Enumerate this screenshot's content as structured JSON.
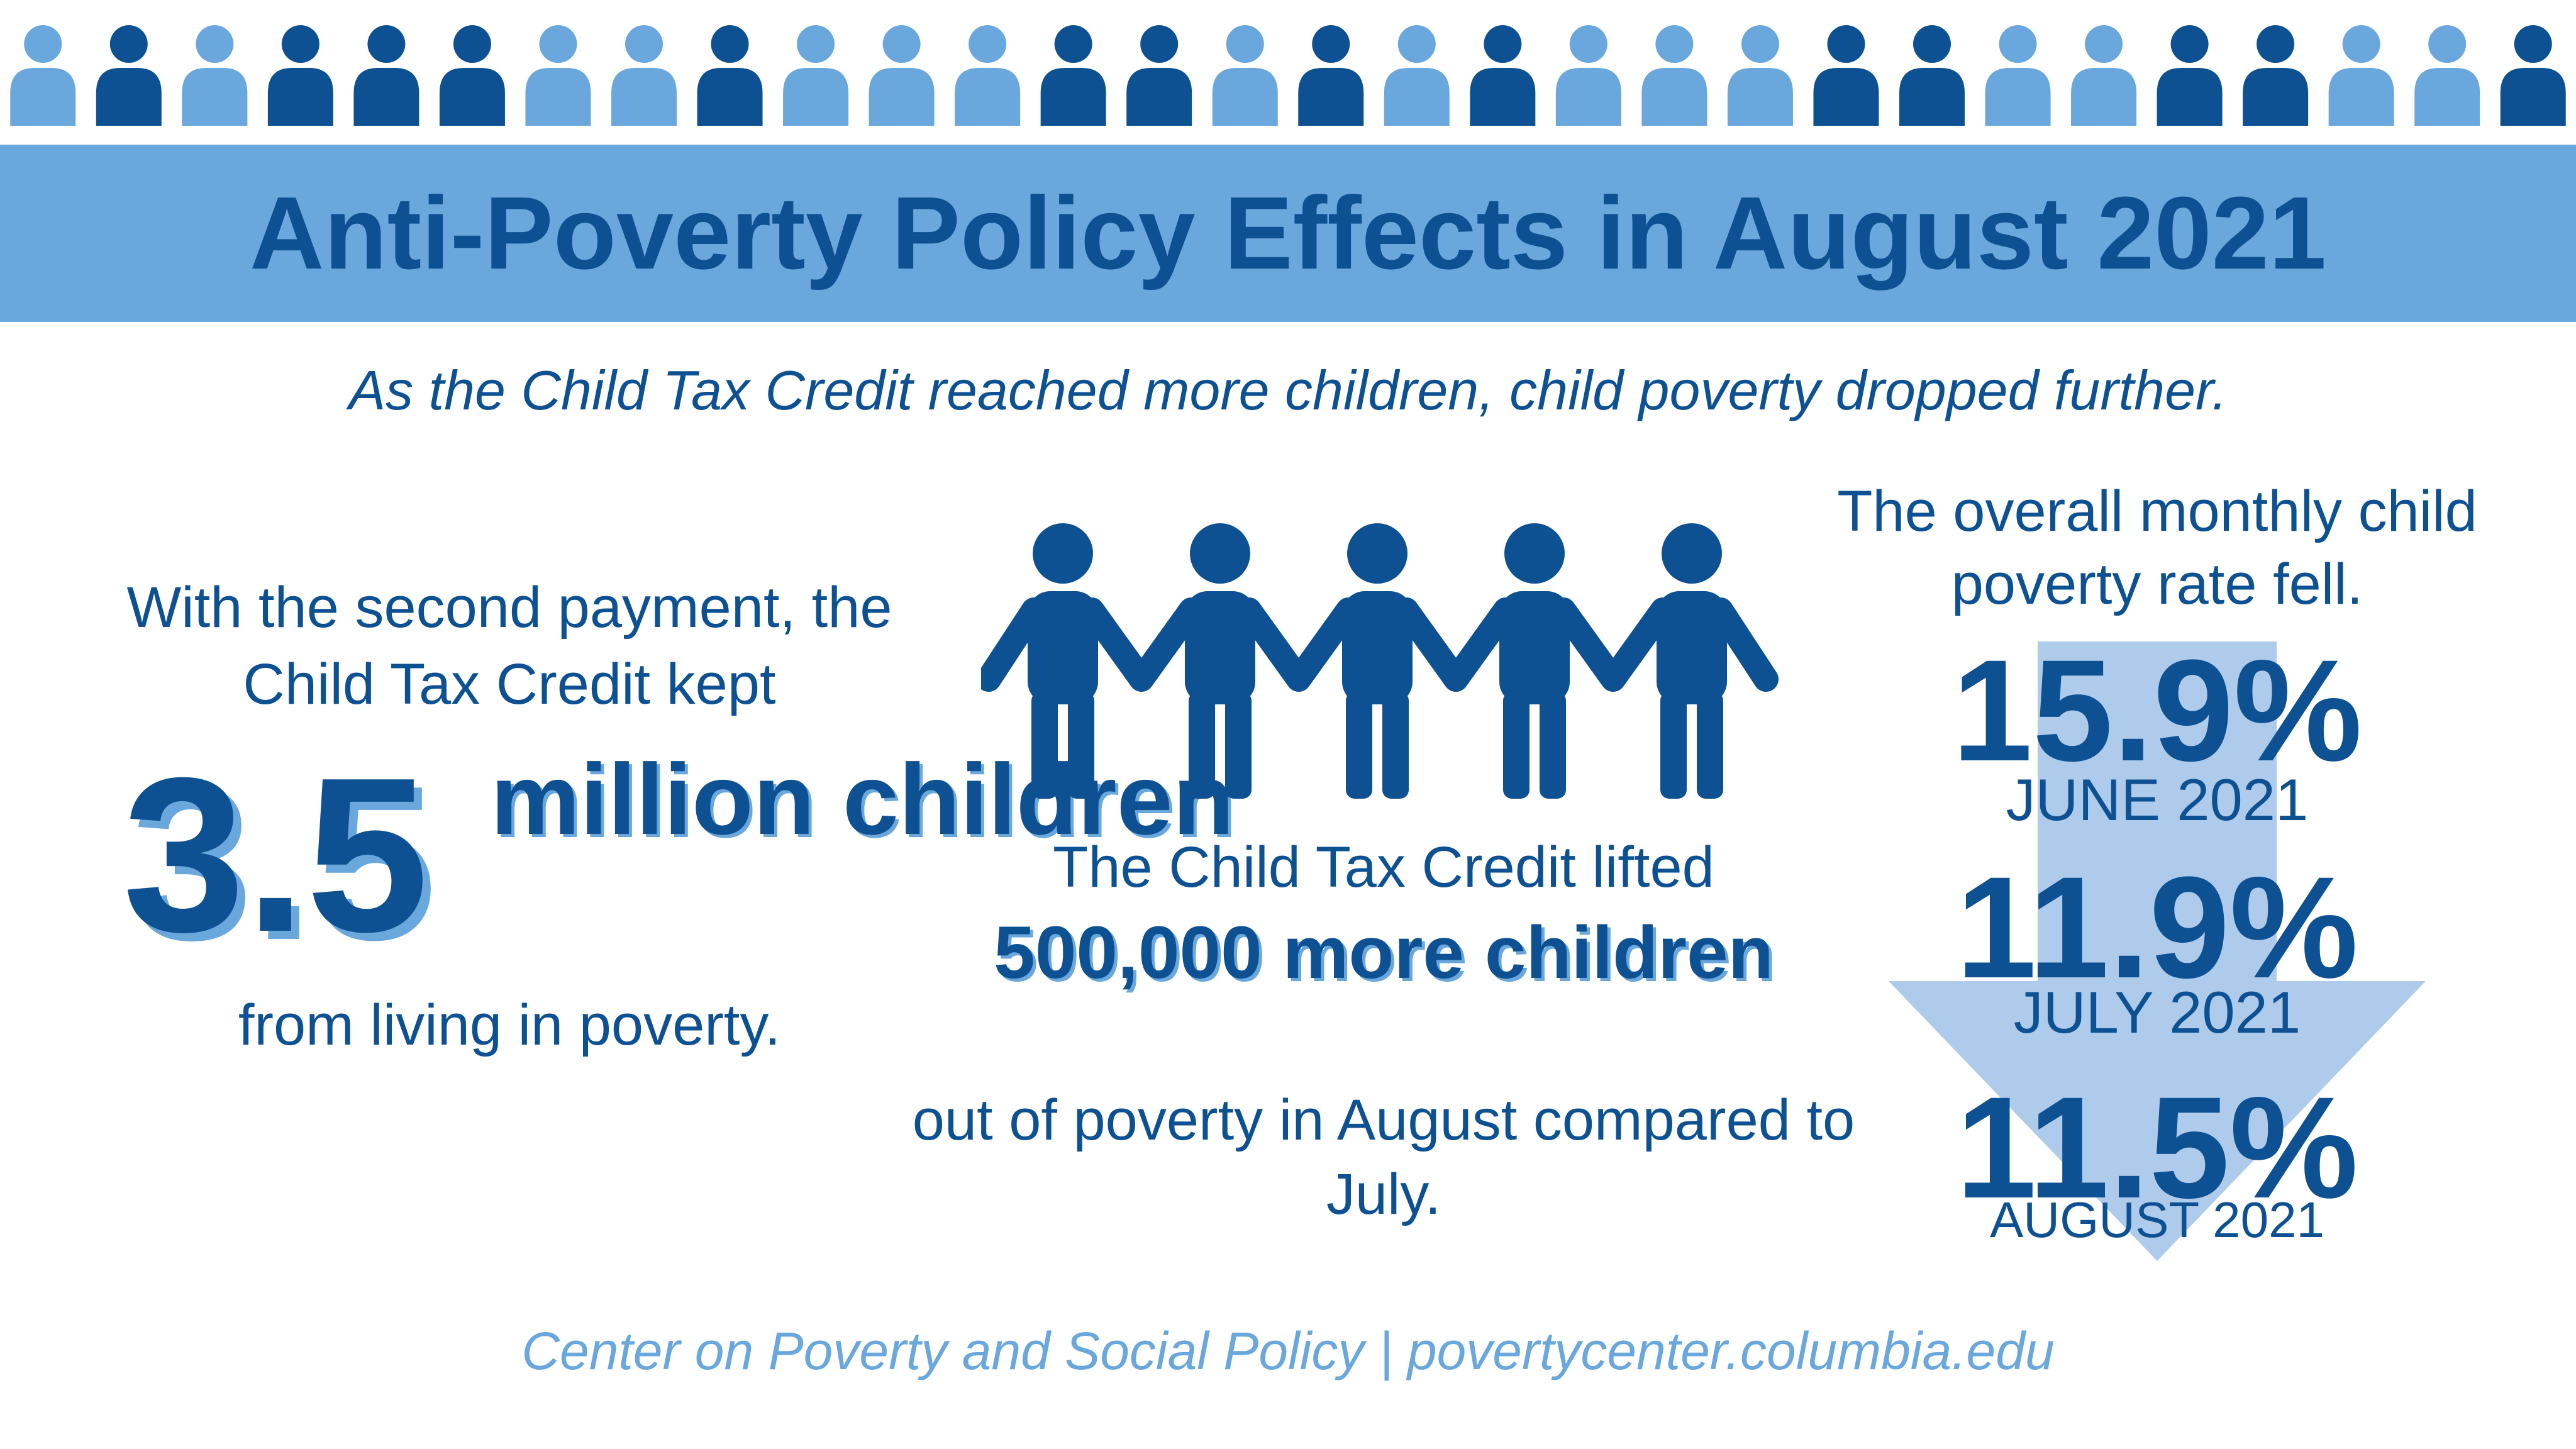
{
  "header": {
    "title": "Anti-Poverty Policy Effects in August 2021",
    "subtitle": "As the Child Tax Credit reached more children, child poverty dropped further."
  },
  "left": {
    "intro": "With the second payment, the Child Tax Credit kept",
    "big_number": "3.5",
    "unit": "million children",
    "outro": "from living in poverty."
  },
  "middle": {
    "line1": "The Child Tax Credit lifted",
    "highlight": "500,000 more children",
    "line3": "out of poverty in August compared to July."
  },
  "right": {
    "heading": "The overall monthly child poverty rate fell.",
    "rates": [
      {
        "value": "15.9%",
        "label": "JUNE 2021"
      },
      {
        "value": "11.9%",
        "label": "JULY 2021"
      },
      {
        "value": "11.5%",
        "label": "AUGUST 2021"
      }
    ]
  },
  "footer": "Center on Poverty and Social Policy | povertycenter.columbia.edu",
  "icons": {
    "people_row": "person-icon",
    "children": "children-holding-hands-icon",
    "arrow": "down-arrow-icon"
  },
  "colors": {
    "dark_blue": "#0e5192",
    "light_blue": "#6aa7dc",
    "arrow_blue": "#aecbeb",
    "background": "#ffffff",
    "people_row_pattern": [
      "light",
      "dark",
      "light",
      "dark",
      "dark",
      "dark",
      "light",
      "light",
      "dark",
      "light",
      "light",
      "light",
      "dark",
      "dark",
      "light",
      "dark",
      "light",
      "dark",
      "light",
      "light",
      "light",
      "dark",
      "dark",
      "light",
      "light",
      "dark",
      "dark",
      "light",
      "light",
      "dark"
    ]
  }
}
